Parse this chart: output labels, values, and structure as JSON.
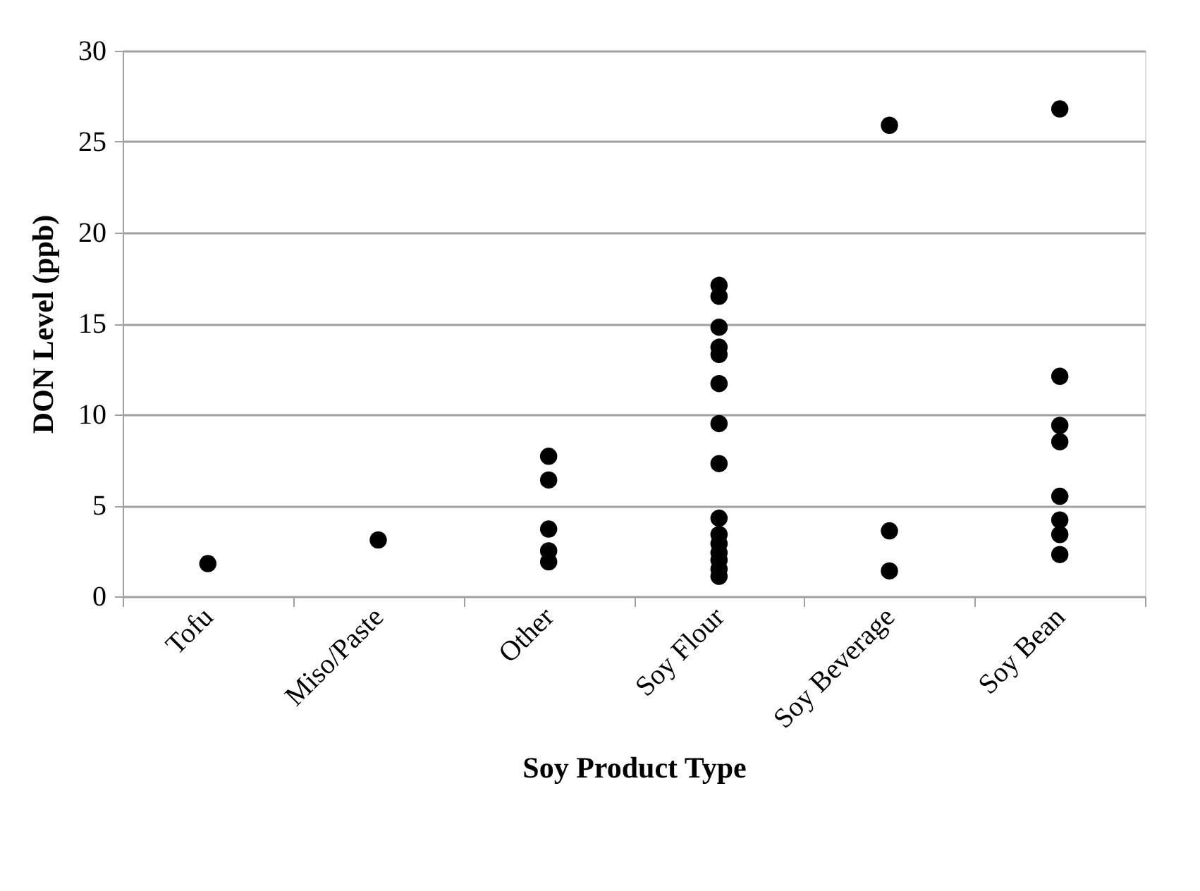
{
  "chart_data": {
    "type": "scatter",
    "xlabel": "Soy Product Type",
    "ylabel": "DON Level (ppb)",
    "categories": [
      "Tofu",
      "Miso/Paste",
      "Other",
      "Soy Flour",
      "Soy Beverage",
      "Soy Bean"
    ],
    "series": [
      {
        "color": "#000000",
        "x": [
          "Tofu",
          "Miso/Paste",
          "Other",
          "Other",
          "Other",
          "Other",
          "Other",
          "Soy Flour",
          "Soy Flour",
          "Soy Flour",
          "Soy Flour",
          "Soy Flour",
          "Soy Flour",
          "Soy Flour",
          "Soy Flour",
          "Soy Flour",
          "Soy Flour",
          "Soy Flour",
          "Soy Flour",
          "Soy Flour",
          "Soy Flour",
          "Soy Flour",
          "Soy Beverage",
          "Soy Beverage",
          "Soy Beverage",
          "Soy Bean",
          "Soy Bean",
          "Soy Bean",
          "Soy Bean",
          "Soy Bean",
          "Soy Bean",
          "Soy Bean",
          "Soy Bean"
        ],
        "values": [
          1.8,
          3.1,
          7.7,
          6.4,
          3.7,
          2.5,
          1.9,
          17.1,
          16.5,
          14.8,
          13.7,
          13.3,
          11.7,
          9.5,
          7.3,
          4.3,
          3.4,
          2.9,
          2.4,
          2.0,
          1.5,
          1.1,
          25.9,
          3.6,
          1.4,
          26.8,
          12.1,
          9.4,
          8.5,
          5.5,
          4.2,
          3.4,
          2.3
        ]
      }
    ],
    "ylim": [
      0,
      30
    ],
    "yticks": [
      0,
      5,
      10,
      15,
      20,
      25,
      30
    ],
    "grid": "y",
    "marker": "circle"
  }
}
